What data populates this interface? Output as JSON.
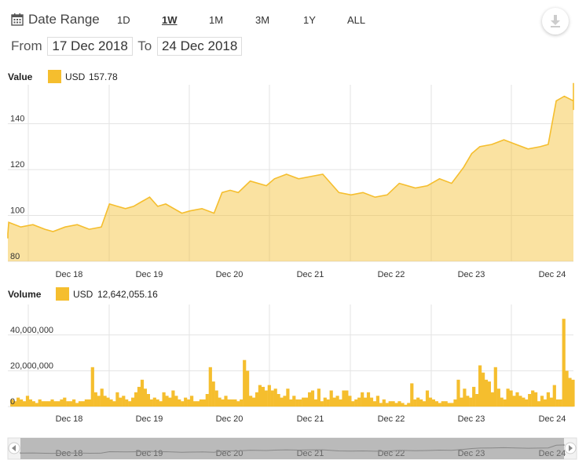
{
  "toolbar": {
    "date_range_label": "Date Range",
    "ranges": [
      "1D",
      "1W",
      "1M",
      "3M",
      "1Y",
      "ALL"
    ],
    "active_range": "1W",
    "from_label": "From",
    "from_date": "17 Dec 2018",
    "to_label": "To",
    "to_date": "24 Dec 2018"
  },
  "value_panel": {
    "title": "Value",
    "legend_currency": "USD",
    "legend_value": "157.78",
    "color": "#f5be2e"
  },
  "volume_panel": {
    "title": "Volume",
    "legend_currency": "USD",
    "legend_value": "12,642,055.16",
    "color": "#f5be2e"
  },
  "navigator": {
    "labels": [
      "Dec 18",
      "Dec 19",
      "Dec 20",
      "Dec 21",
      "Dec 22",
      "Dec 23",
      "Dec 24"
    ]
  },
  "chart_data": [
    {
      "type": "area",
      "title": "Value",
      "series_label": "USD",
      "x_ticks": [
        "Dec 18",
        "Dec 19",
        "Dec 20",
        "Dec 21",
        "Dec 22",
        "Dec 23",
        "Dec 24"
      ],
      "ylim": [
        80,
        157
      ],
      "yticks": [
        80,
        100,
        120,
        140
      ],
      "grid": true,
      "x": [
        17.0,
        17.1,
        17.25,
        17.4,
        17.55,
        17.7,
        17.8,
        17.95,
        18.1,
        18.25,
        18.4,
        18.5,
        18.6,
        18.7,
        18.8,
        18.9,
        19.0,
        19.1,
        19.2,
        19.4,
        19.5,
        19.65,
        19.8,
        19.9,
        20.0,
        20.1,
        20.25,
        20.45,
        20.55,
        20.7,
        20.85,
        21.0,
        21.15,
        21.35,
        21.5,
        21.65,
        21.8,
        21.95,
        22.1,
        22.3,
        22.45,
        22.6,
        22.75,
        22.9,
        23.0,
        23.1,
        23.25,
        23.4,
        23.55,
        23.7,
        23.85,
        23.95,
        24.05,
        24.15,
        24.3,
        24.45,
        24.6,
        24.75
      ],
      "y": [
        90,
        92,
        97,
        95,
        96,
        94,
        93,
        95,
        96,
        94,
        95,
        105,
        104,
        103,
        104,
        106,
        108,
        104,
        105,
        101,
        102,
        103,
        101,
        110,
        111,
        110,
        115,
        113,
        116,
        118,
        116,
        117,
        118,
        110,
        109,
        110,
        108,
        109,
        114,
        112,
        113,
        116,
        114,
        121,
        127,
        130,
        131,
        133,
        131,
        129,
        130,
        131,
        150,
        152,
        150,
        150,
        146,
        157.78
      ],
      "x_domain": [
        17.0,
        24.75
      ]
    },
    {
      "type": "bar",
      "title": "Volume",
      "series_label": "USD",
      "x_ticks": [
        "Dec 18",
        "Dec 19",
        "Dec 20",
        "Dec 21",
        "Dec 22",
        "Dec 23",
        "Dec 24"
      ],
      "ylim": [
        0,
        57000000
      ],
      "yticks": [
        0,
        20000000,
        40000000
      ],
      "ytick_labels": [
        "0",
        "20,000,000",
        "40,000,000"
      ],
      "grid": true,
      "x_domain": [
        17.0,
        24.75
      ],
      "x_start": 17.0,
      "x_step": 0.03,
      "values": [
        8,
        14,
        12,
        6,
        5,
        4,
        3,
        4,
        3,
        5,
        4,
        3,
        6,
        4,
        3,
        2,
        4,
        3,
        3,
        3,
        4,
        3,
        3,
        4,
        5,
        3,
        3,
        4,
        2,
        3,
        3,
        4,
        4,
        22,
        8,
        6,
        10,
        6,
        5,
        4,
        3,
        8,
        5,
        6,
        4,
        3,
        5,
        8,
        11,
        15,
        10,
        7,
        4,
        5,
        4,
        3,
        8,
        6,
        5,
        9,
        6,
        4,
        3,
        5,
        4,
        6,
        3,
        3,
        4,
        4,
        7,
        22,
        14,
        9,
        5,
        4,
        6,
        4,
        4,
        4,
        3,
        4,
        26,
        20,
        6,
        5,
        8,
        12,
        11,
        9,
        12,
        9,
        10,
        7,
        5,
        6,
        10,
        4,
        6,
        4,
        4,
        5,
        5,
        8,
        9,
        4,
        10,
        3,
        5,
        4,
        9,
        5,
        6,
        4,
        9,
        9,
        6,
        3,
        4,
        5,
        8,
        5,
        8,
        5,
        3,
        6,
        2,
        4,
        2,
        3,
        3,
        2,
        3,
        2,
        1,
        2,
        13,
        4,
        5,
        4,
        3,
        9,
        5,
        4,
        3,
        2,
        3,
        3,
        2,
        2,
        4,
        15,
        5,
        10,
        6,
        5,
        11,
        7,
        23,
        19,
        15,
        14,
        8,
        22,
        10,
        5,
        4,
        10,
        9,
        6,
        8,
        6,
        5,
        4,
        7,
        9,
        8,
        3,
        6,
        4,
        8,
        5,
        12,
        4,
        4,
        49,
        20,
        16,
        15,
        7,
        13,
        12,
        9,
        5,
        7,
        6,
        4,
        6,
        24,
        13
      ],
      "last_value": 12642055.16,
      "unit_scale": 1000000
    }
  ]
}
